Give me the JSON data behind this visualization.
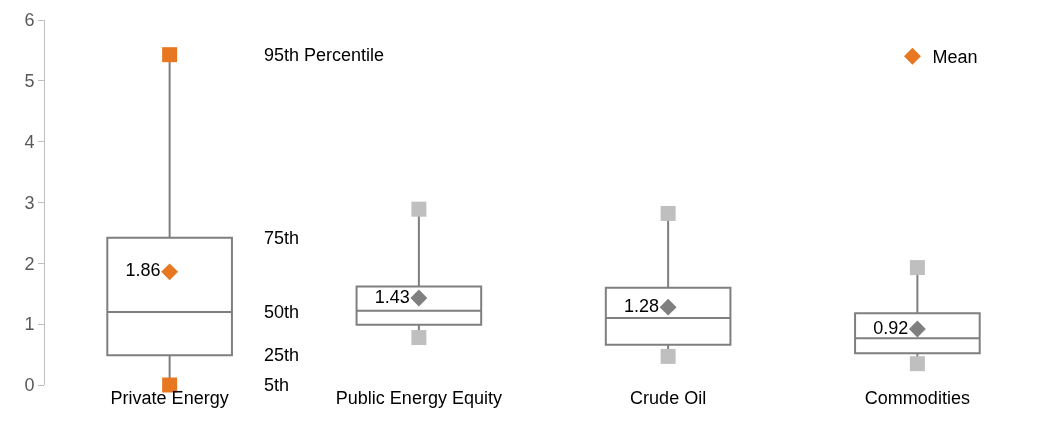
{
  "chart_data": {
    "type": "box",
    "categories": [
      "Private Energy",
      "Public Energy Equity",
      "Crude Oil",
      "Commodities"
    ],
    "boxes": [
      {
        "low": 0.0,
        "q1": 0.49,
        "median": 1.2,
        "q3": 2.42,
        "high": 5.43
      },
      {
        "low": 0.78,
        "q1": 0.99,
        "median": 1.22,
        "q3": 1.62,
        "high": 2.89
      },
      {
        "low": 0.47,
        "q1": 0.66,
        "median": 1.1,
        "q3": 1.6,
        "high": 2.82
      },
      {
        "low": 0.35,
        "q1": 0.52,
        "median": 0.77,
        "q3": 1.18,
        "high": 1.93
      }
    ],
    "color": "#7f7f7f",
    "series": [
      {
        "type": "scatter",
        "marker": "square",
        "values": [
          0.0,
          0.78,
          0.47,
          0.35
        ],
        "colors": [
          "#e87722",
          "#bfbfbf",
          "#bfbfbf",
          "#bfbfbf"
        ]
      },
      {
        "type": "scatter",
        "marker": "square",
        "values": [
          5.43,
          2.89,
          2.82,
          1.93
        ],
        "colors": [
          "#e87722",
          "#bfbfbf",
          "#bfbfbf",
          "#bfbfbf"
        ]
      },
      {
        "name": "Mean",
        "type": "scatter",
        "marker": "diamond",
        "values": [
          1.86,
          1.43,
          1.28,
          0.92
        ],
        "value_labels": [
          "1.86",
          "1.43",
          "1.28",
          "0.92"
        ],
        "colors": [
          "#e87722",
          "#7f7f7f",
          "#7f7f7f",
          "#7f7f7f"
        ]
      }
    ],
    "ylim": [
      0,
      6
    ],
    "yticks": [
      0,
      1,
      2,
      3,
      4,
      5,
      6
    ],
    "legend": "top right",
    "annotations": [
      "95th Percentile",
      "75th",
      "50th",
      "25th",
      "5th"
    ]
  }
}
